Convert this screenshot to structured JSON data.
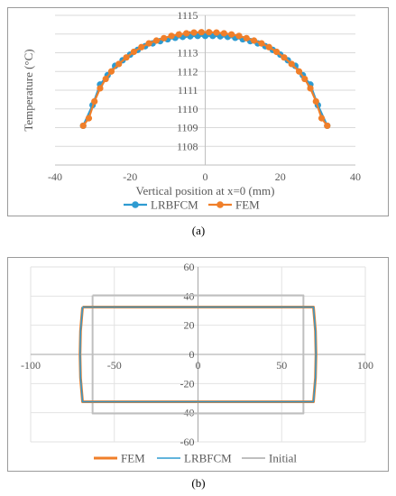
{
  "captions": {
    "a": "(a)",
    "b": "(b)"
  },
  "chart_data": [
    {
      "type": "line",
      "title": "",
      "xlabel": "Vertical position at x=0 (mm)",
      "ylabel": "Temperature (°C)",
      "xlim": [
        -40,
        40
      ],
      "ylim": [
        1107,
        1115
      ],
      "xticks": [
        -40,
        -20,
        0,
        20,
        40
      ],
      "yticks": [
        1108,
        1109,
        1110,
        1111,
        1112,
        1113,
        1114,
        1115
      ],
      "grid": "horizontal",
      "legend": "bottom",
      "series": [
        {
          "name": "LRBFCM",
          "color": "#2e9bd1",
          "marker": "circle",
          "points": [
            [
              -32.5,
              1109.1
            ],
            [
              -30,
              1110.2
            ],
            [
              -28,
              1111.3
            ],
            [
              -26,
              1111.8
            ],
            [
              -24,
              1112.3
            ],
            [
              -22,
              1112.6
            ],
            [
              -20,
              1112.9
            ],
            [
              -18,
              1113.15
            ],
            [
              -16,
              1113.35
            ],
            [
              -14,
              1113.5
            ],
            [
              -12,
              1113.62
            ],
            [
              -10,
              1113.72
            ],
            [
              -8,
              1113.8
            ],
            [
              -6,
              1113.85
            ],
            [
              -4,
              1113.88
            ],
            [
              -2,
              1113.9
            ],
            [
              0,
              1113.9
            ],
            [
              2,
              1113.9
            ],
            [
              4,
              1113.88
            ],
            [
              6,
              1113.85
            ],
            [
              8,
              1113.8
            ],
            [
              10,
              1113.72
            ],
            [
              12,
              1113.62
            ],
            [
              14,
              1113.5
            ],
            [
              16,
              1113.35
            ],
            [
              18,
              1113.15
            ],
            [
              20,
              1112.9
            ],
            [
              22,
              1112.6
            ],
            [
              24,
              1112.3
            ],
            [
              26,
              1111.8
            ],
            [
              28,
              1111.3
            ],
            [
              30,
              1110.2
            ],
            [
              32.5,
              1109.1
            ]
          ]
        },
        {
          "name": "FEM",
          "color": "#f07f2a",
          "marker": "circle",
          "points": [
            [
              -32.5,
              1109.1
            ],
            [
              -31,
              1109.5
            ],
            [
              -29.5,
              1110.4
            ],
            [
              -28,
              1111.1
            ],
            [
              -26.5,
              1111.6
            ],
            [
              -25,
              1112.0
            ],
            [
              -23,
              1112.4
            ],
            [
              -21,
              1112.75
            ],
            [
              -19,
              1113.05
            ],
            [
              -17,
              1113.3
            ],
            [
              -15,
              1113.5
            ],
            [
              -13,
              1113.65
            ],
            [
              -11,
              1113.78
            ],
            [
              -9,
              1113.9
            ],
            [
              -7,
              1113.98
            ],
            [
              -5,
              1114.04
            ],
            [
              -3,
              1114.08
            ],
            [
              -1,
              1114.1
            ],
            [
              1,
              1114.1
            ],
            [
              3,
              1114.08
            ],
            [
              5,
              1114.04
            ],
            [
              7,
              1113.98
            ],
            [
              9,
              1113.9
            ],
            [
              11,
              1113.78
            ],
            [
              13,
              1113.65
            ],
            [
              15,
              1113.5
            ],
            [
              17,
              1113.3
            ],
            [
              19,
              1113.05
            ],
            [
              21,
              1112.75
            ],
            [
              23,
              1112.4
            ],
            [
              25,
              1112.0
            ],
            [
              26.5,
              1111.6
            ],
            [
              28,
              1111.1
            ],
            [
              29.5,
              1110.4
            ],
            [
              31,
              1109.5
            ],
            [
              32.5,
              1109.1
            ]
          ]
        }
      ]
    },
    {
      "type": "line",
      "title": "",
      "xlabel": "",
      "ylabel": "",
      "xlim": [
        -100,
        100
      ],
      "ylim": [
        -60,
        60
      ],
      "xticks": [
        -100,
        -50,
        0,
        50,
        100
      ],
      "yticks": [
        -60,
        -40,
        -20,
        0,
        20,
        40,
        60
      ],
      "grid": "both",
      "legend": "bottom",
      "series": [
        {
          "name": "FEM",
          "color": "#f07f2a",
          "width": 3,
          "points": [
            [
              -69,
              32.5
            ],
            [
              0,
              32.5
            ],
            [
              69,
              32.5
            ],
            [
              70.2,
              16
            ],
            [
              70.5,
              0
            ],
            [
              70.2,
              -16
            ],
            [
              69,
              -32.5
            ],
            [
              0,
              -32.5
            ],
            [
              -69,
              -32.5
            ],
            [
              -70.2,
              -16
            ],
            [
              -70.5,
              0
            ],
            [
              -70.2,
              16
            ],
            [
              -69,
              32.5
            ]
          ]
        },
        {
          "name": "LRBFCM",
          "color": "#2e9bd1",
          "width": 1.5,
          "points": [
            [
              -69,
              32.5
            ],
            [
              0,
              32.5
            ],
            [
              69,
              32.5
            ],
            [
              70.2,
              16
            ],
            [
              70.5,
              0
            ],
            [
              70.2,
              -16
            ],
            [
              69,
              -32.5
            ],
            [
              0,
              -32.5
            ],
            [
              -69,
              -32.5
            ],
            [
              -70.2,
              -16
            ],
            [
              -70.5,
              0
            ],
            [
              -70.2,
              16
            ],
            [
              -69,
              32.5
            ]
          ]
        },
        {
          "name": "Initial",
          "color": "#bfbfbf",
          "width": 2,
          "points": [
            [
              -63,
              40.5
            ],
            [
              63,
              40.5
            ],
            [
              63,
              -40.5
            ],
            [
              -63,
              -40.5
            ],
            [
              -63,
              40.5
            ]
          ]
        }
      ]
    }
  ]
}
